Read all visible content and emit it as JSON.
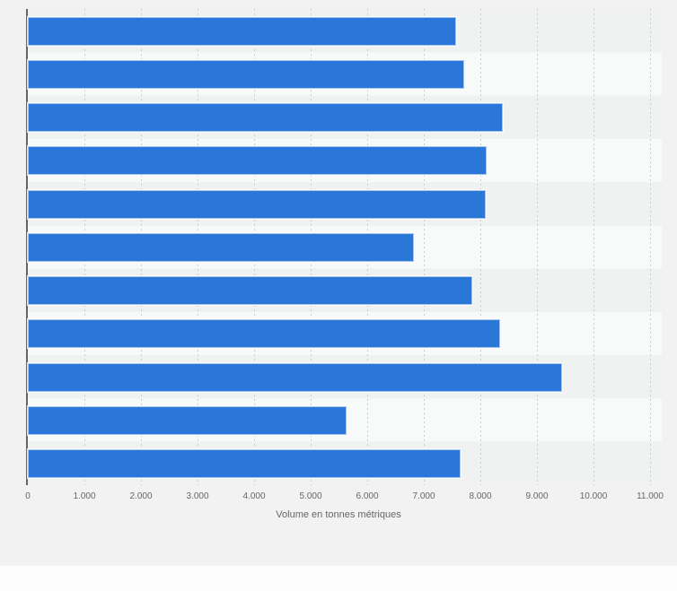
{
  "chart_data": {
    "type": "bar",
    "orientation": "horizontal",
    "title": "",
    "xlabel": "Volume en tonnes métriques",
    "ylabel": "",
    "category_labels_visible": false,
    "bar_count": 11,
    "values": [
      7570,
      7720,
      8400,
      8110,
      8100,
      6820,
      7860,
      8350,
      9450,
      5640,
      7650
    ],
    "unit": "tonnes métriques",
    "x_tick_labels": [
      "0",
      "1.000",
      "2.000",
      "3.000",
      "4.000",
      "5.000",
      "6.000",
      "7.000",
      "8.000",
      "9.000",
      "10.000",
      "11.000"
    ],
    "x_tick_values": [
      0,
      1000,
      2000,
      3000,
      4000,
      5000,
      6000,
      7000,
      8000,
      9000,
      10000,
      11000
    ],
    "xlim": [
      0,
      11000
    ],
    "grid": "vertical-dashed",
    "legend": "none",
    "bar_color": "#2b76d9",
    "bar_border_color": "#a9c7ec"
  },
  "style": {
    "page_background": "#f2f2f2",
    "stripe_dark": "#f0f1f1",
    "stripe_light": "#f8f9f9",
    "axis_line_color": "#666666",
    "gridline_color": "#cccccc",
    "tick_text_color": "#666666",
    "footer_background": "#fcfcfc"
  }
}
